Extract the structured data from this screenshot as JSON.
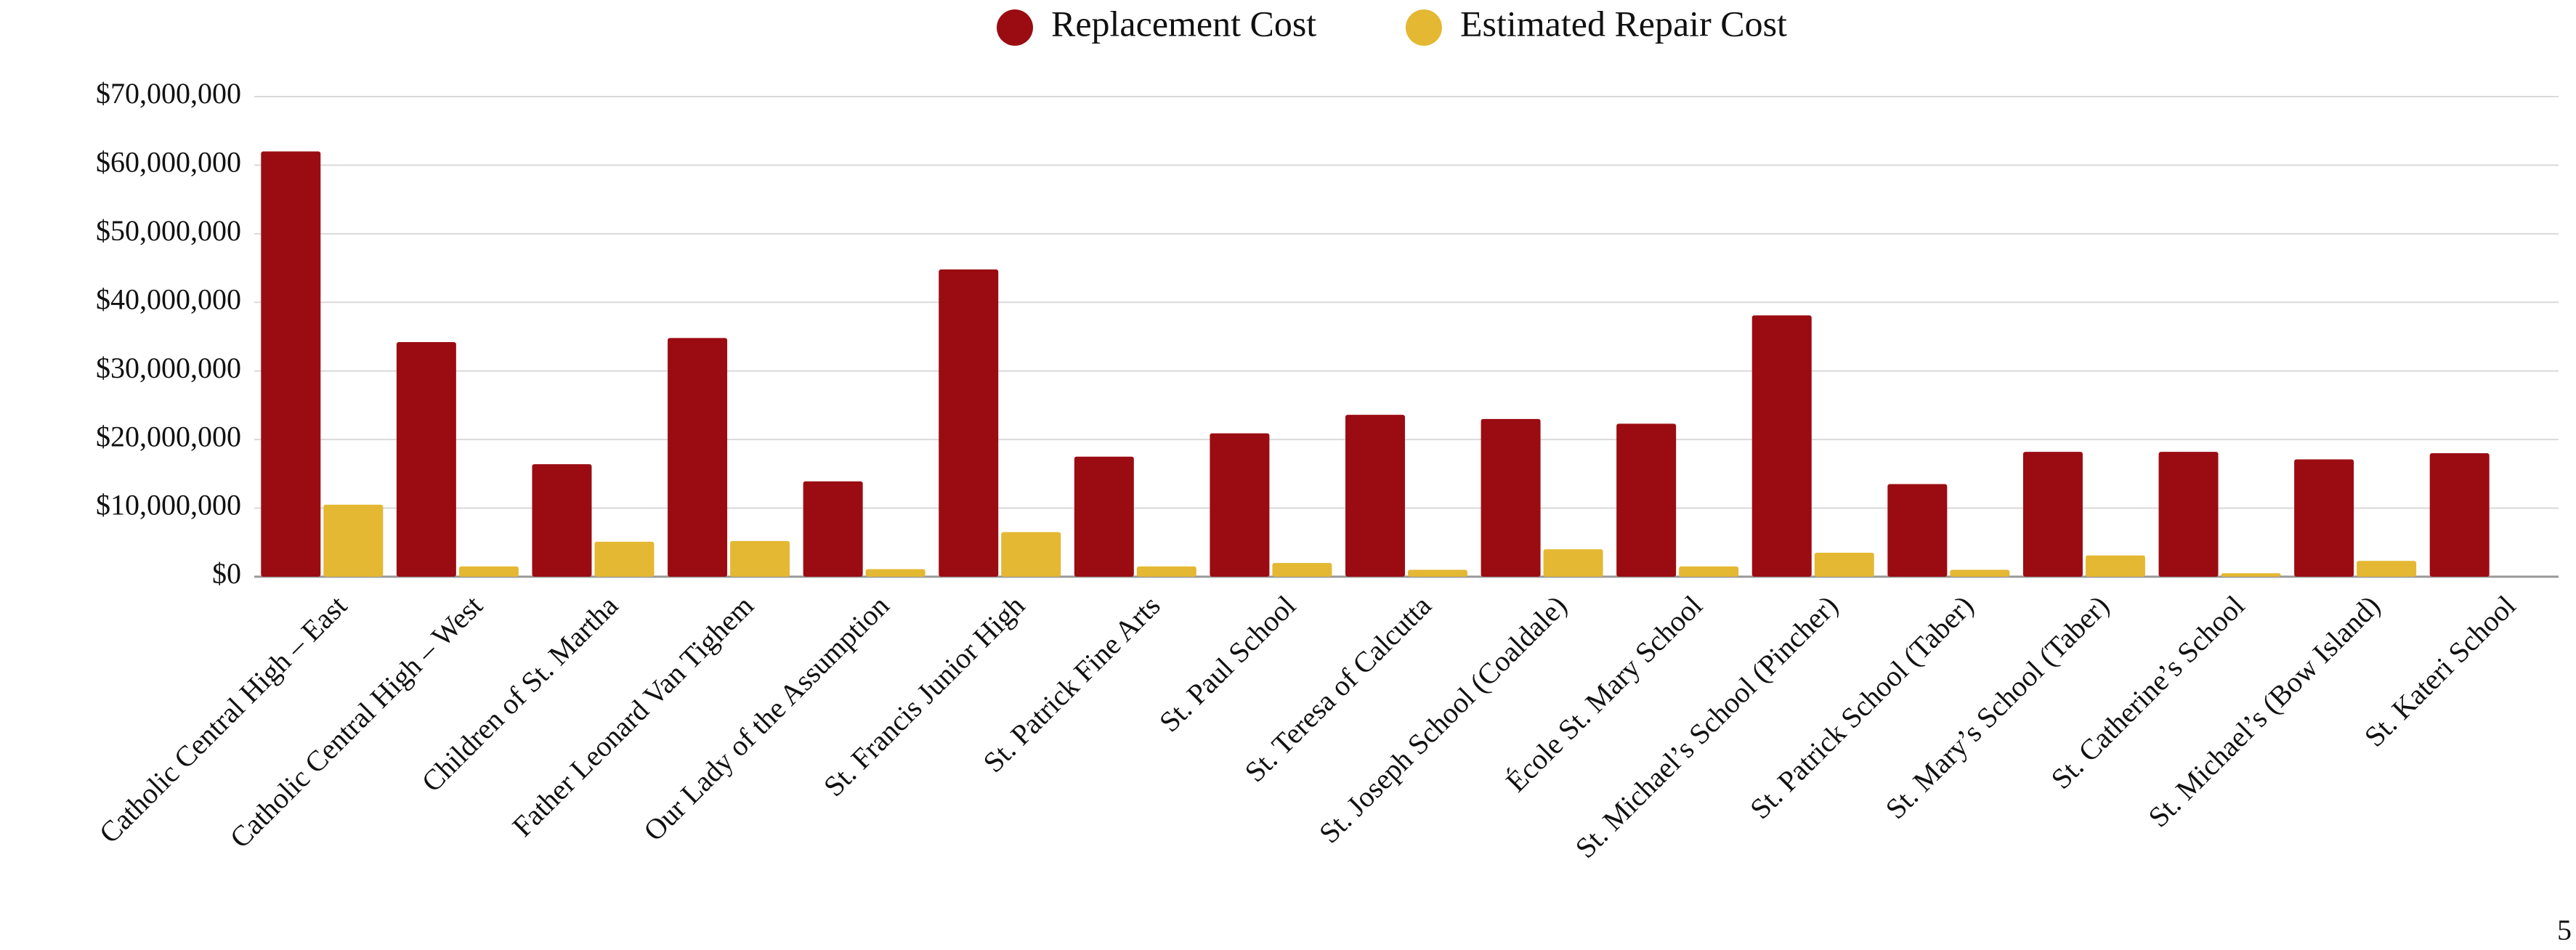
{
  "chart_data": {
    "type": "bar",
    "categories": [
      "Catholic Central High – East",
      "Catholic Central High – West",
      "Children of St. Martha",
      "Father Leonard Van Tighem",
      "Our Lady of the Assumption",
      "St. Francis Junior High",
      "St. Patrick Fine Arts",
      "St. Paul School",
      "St. Teresa of Calcutta",
      "St. Joseph School (Coaldale)",
      "École St. Mary School",
      "St. Michael’s School (Pincher)",
      "St. Patrick School (Taber)",
      "St. Mary’s School (Taber)",
      "St. Catherine’s School",
      "St. Michael’s (Bow Island)",
      "St. Kateri School"
    ],
    "series": [
      {
        "name": "Replacement Cost",
        "color": "#9b0c12",
        "values": [
          62000000,
          34200000,
          16400000,
          34800000,
          13900000,
          44800000,
          17500000,
          20900000,
          23600000,
          23000000,
          22300000,
          38100000,
          13500000,
          18200000,
          18200000,
          17100000,
          18000000
        ]
      },
      {
        "name": "Estimated Repair Cost",
        "color": "#e4b832",
        "values": [
          10500000,
          1500000,
          5100000,
          5200000,
          1100000,
          6500000,
          1500000,
          2000000,
          1000000,
          4000000,
          1500000,
          3500000,
          1000000,
          3100000,
          500000,
          2300000,
          null
        ]
      }
    ],
    "ylim": [
      0,
      70000000
    ],
    "yticks": [
      {
        "value": 0,
        "label": "$0"
      },
      {
        "value": 10000000,
        "label": "$10,000,000"
      },
      {
        "value": 20000000,
        "label": "$20,000,000"
      },
      {
        "value": 30000000,
        "label": "$30,000,000"
      },
      {
        "value": 40000000,
        "label": "$40,000,000"
      },
      {
        "value": 50000000,
        "label": "$50,000,000"
      },
      {
        "value": 60000000,
        "label": "$60,000,000"
      },
      {
        "value": 70000000,
        "label": "$70,000,000"
      }
    ],
    "grid": true,
    "legend": "top"
  },
  "page_number": "5"
}
